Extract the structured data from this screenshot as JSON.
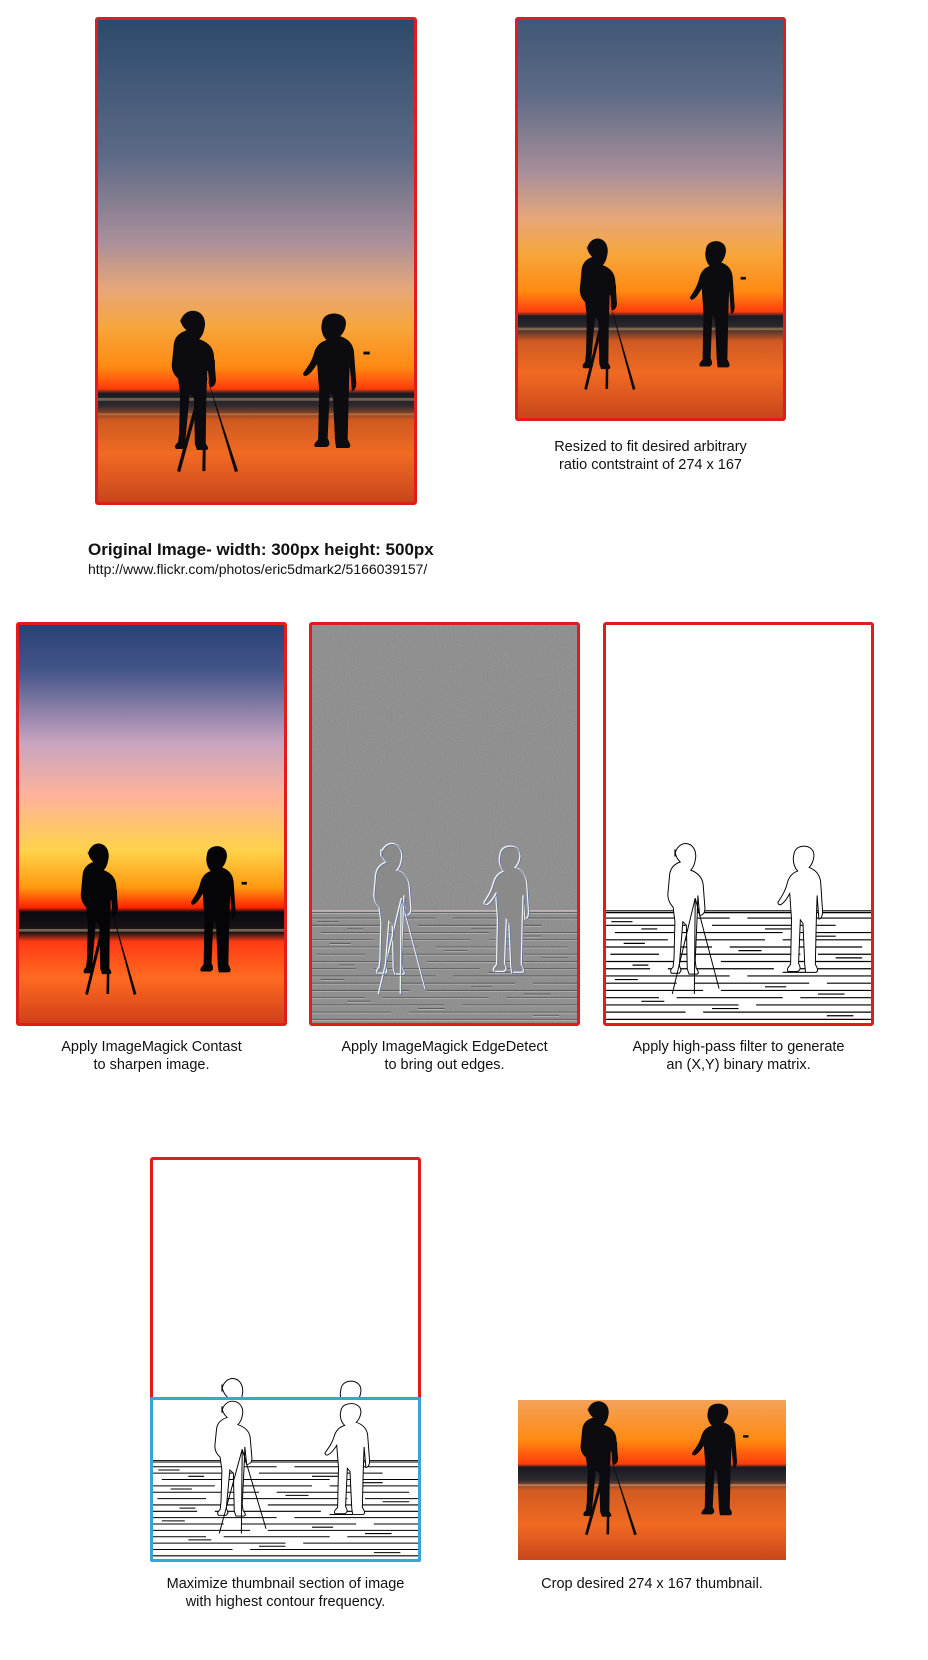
{
  "original": {
    "title": "Original Image- width: 300px  height: 500px",
    "url": "http://www.flickr.com/photos/eric5dmark2/5166039157/"
  },
  "steps": {
    "resized": [
      "Resized to fit desired arbitrary",
      "ratio contstraint of 274 x 167"
    ],
    "contrast": [
      "Apply ImageMagick Contast",
      "to sharpen image."
    ],
    "edge": [
      "Apply ImageMagick EdgeDetect",
      "to bring out edges."
    ],
    "highpass": [
      "Apply high-pass filter to generate",
      "an (X,Y) binary matrix."
    ],
    "maximize": [
      "Maximize thumbnail section of image",
      "with highest contour frequency."
    ],
    "crop": [
      "Crop desired 274 x 167 thumbnail."
    ]
  },
  "colors": {
    "frame_red": "#e21b1b",
    "frame_blue": "#3aa4d4"
  }
}
